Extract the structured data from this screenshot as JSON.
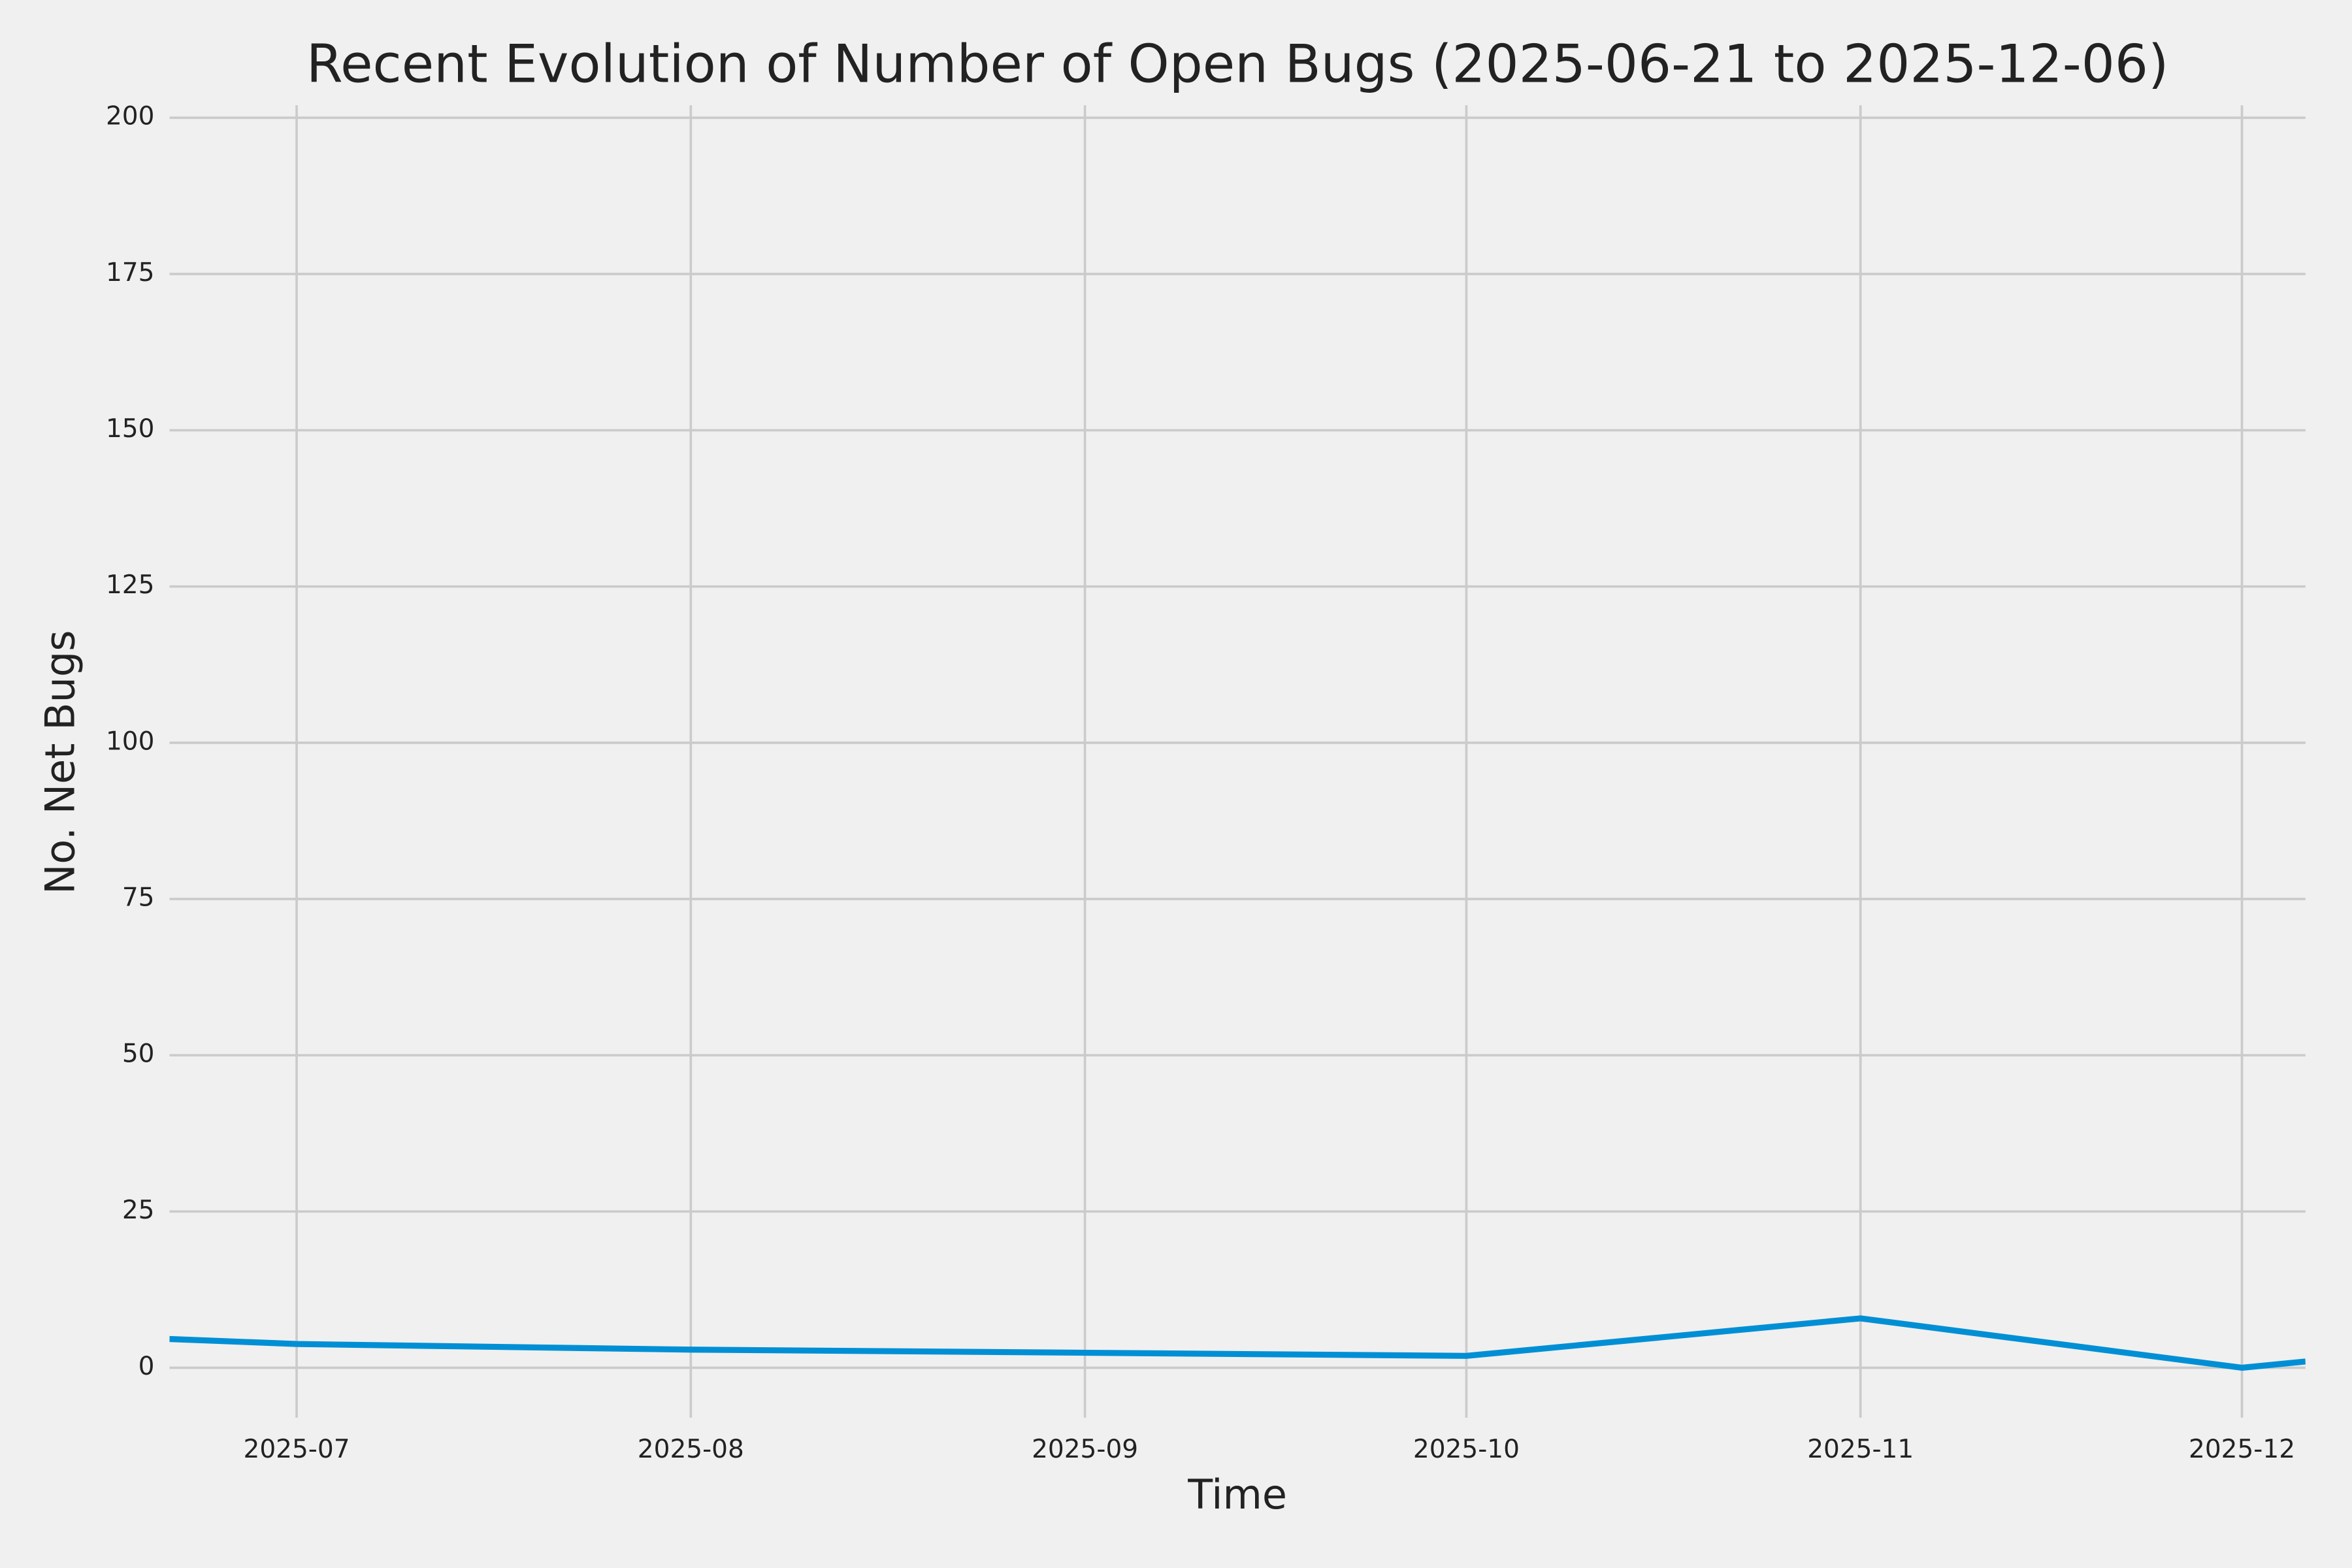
{
  "chart_data": {
    "type": "line",
    "title": "Recent Evolution of Number of Open Bugs (2025-06-21 to 2025-12-06)",
    "x_label": "Time",
    "y_label": "No. Net Bugs",
    "x": [
      "2025-06-21",
      "2025-07",
      "2025-08",
      "2025-09",
      "2025-10",
      "2025-11",
      "2025-12",
      "2025-12-06"
    ],
    "series": [
      {
        "color": "#008fd5",
        "values": [
          4.6,
          3.8,
          2.9,
          2.4,
          1.9,
          7.9,
          0,
          1
        ]
      }
    ],
    "xlim": [
      "2025-06-21",
      "2025-12-06"
    ],
    "xticks": [
      "2025-07",
      "2025-08",
      "2025-09",
      "2025-10",
      "2025-11",
      "2025-12"
    ],
    "ylim": [
      -8,
      202
    ],
    "yticks": [
      0,
      25,
      50,
      75,
      100,
      125,
      150,
      175,
      200
    ],
    "grid": true
  }
}
